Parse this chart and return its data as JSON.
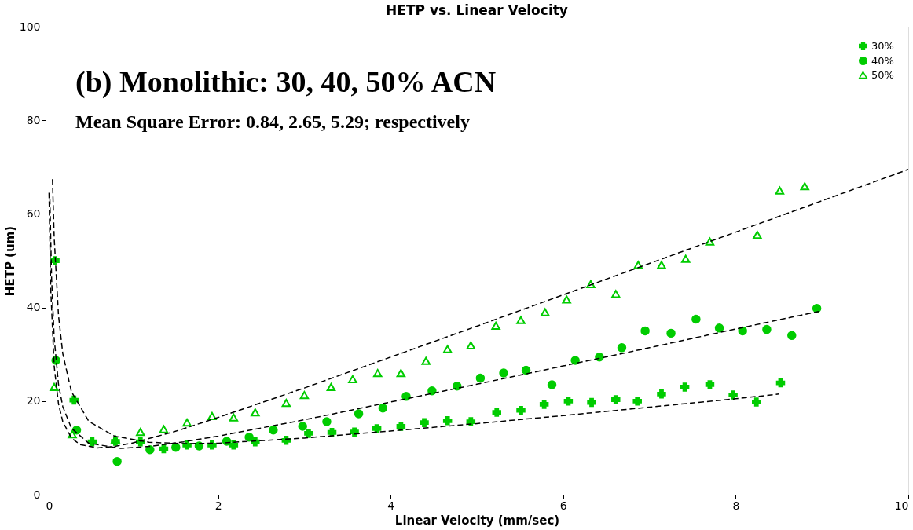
{
  "chart_data": {
    "type": "scatter",
    "title": "HETP vs. Linear Velocity",
    "xlabel": "Linear Velocity (mm/sec)",
    "ylabel": "HETP (um)",
    "annotations": [
      "(b) Monolithic: 30, 40, 50% ACN",
      "Mean Square Error: 0.84, 2.65, 5.29; respectively"
    ],
    "xlim": [
      0,
      10
    ],
    "xticks": [
      0,
      2,
      4,
      6,
      8,
      10
    ],
    "ylim": [
      0,
      100
    ],
    "yticks": [
      0,
      20,
      40,
      60,
      80,
      100
    ],
    "grid": false,
    "legend": "top right",
    "series": [
      {
        "name": "30%",
        "color": "#00cc00",
        "marker": "cross",
        "x": [
          0.11,
          0.33,
          0.54,
          0.81,
          1.1,
          1.37,
          1.64,
          1.93,
          2.18,
          2.43,
          2.79,
          3.05,
          3.32,
          3.58,
          3.84,
          4.12,
          4.39,
          4.66,
          4.93,
          5.23,
          5.51,
          5.78,
          6.06,
          6.33,
          6.61,
          6.86,
          7.14,
          7.41,
          7.7,
          7.97,
          8.24,
          8.52
        ],
        "values": [
          50,
          20.2,
          11.3,
          11.4,
          11.3,
          9.8,
          10.6,
          10.6,
          10.6,
          11.3,
          11.6,
          13.1,
          13.3,
          13.4,
          14.1,
          14.6,
          15.4,
          15.8,
          15.6,
          17.6,
          18,
          19.3,
          20,
          19.7,
          20.3,
          20,
          21.5,
          23,
          23.5,
          21.3,
          19.8,
          23.9
        ]
      },
      {
        "name": "40%",
        "color": "#00cc00",
        "marker": "circle",
        "x": [
          0.12,
          0.36,
          0.55,
          0.83,
          1.21,
          1.51,
          1.78,
          2.1,
          2.36,
          2.64,
          2.98,
          3.26,
          3.63,
          3.91,
          4.18,
          4.48,
          4.77,
          5.04,
          5.31,
          5.57,
          5.87,
          6.14,
          6.42,
          6.68,
          6.95,
          7.25,
          7.54,
          7.81,
          8.08,
          8.36,
          8.65,
          8.94
        ],
        "values": [
          28.7,
          13.8,
          null,
          7.1,
          9.6,
          10.1,
          10.4,
          11.4,
          12.3,
          13.8,
          14.6,
          15.6,
          17.3,
          18.5,
          21,
          22.2,
          23.2,
          24.9,
          26,
          26.6,
          23.5,
          28.7,
          29.4,
          31.4,
          35,
          34.5,
          37.5,
          35.6,
          35,
          35.3,
          34,
          39.8
        ]
      },
      {
        "name": "50%",
        "color": "#00cc00",
        "marker": "triangle",
        "x": [
          0.1,
          0.31,
          0.81,
          1.1,
          1.37,
          1.64,
          1.93,
          2.18,
          2.43,
          2.79,
          3.0,
          3.31,
          3.56,
          3.85,
          4.12,
          4.41,
          4.66,
          4.93,
          5.22,
          5.51,
          5.79,
          6.04,
          6.32,
          6.61,
          6.87,
          7.14,
          7.42,
          7.7,
          8.25,
          8.51,
          8.8
        ],
        "values": [
          23,
          12.9,
          11.8,
          13.4,
          14,
          15.4,
          16.8,
          16.5,
          17.6,
          19.6,
          21.3,
          23,
          24.7,
          26,
          26,
          28.6,
          31.1,
          31.9,
          36.1,
          37.3,
          39,
          41.7,
          45,
          42.9,
          49.1,
          49.1,
          50.4,
          54.1,
          55.5,
          65,
          65.9
        ]
      },
      {
        "type": "line",
        "color": "#000000",
        "line_style": "dashed",
        "x": [
          0.08,
          0.1,
          0.15,
          0.2,
          0.3,
          0.5,
          0.8,
          1.2,
          1.6,
          2,
          3,
          4,
          5,
          6,
          7,
          8,
          8.5
        ],
        "values": [
          67.4,
          54.9,
          38.3,
          30.1,
          22.0,
          15.7,
          12.5,
          11.2,
          10.9,
          11.0,
          12.1,
          13.6,
          15.2,
          16.9,
          18.7,
          20.5,
          21.5
        ]
      },
      {
        "type": "line",
        "color": "#000000",
        "line_style": "dashed",
        "x": [
          0.05,
          0.07,
          0.1,
          0.15,
          0.2,
          0.3,
          0.5,
          0.87,
          1.2,
          1.6,
          2,
          3,
          4,
          5,
          6,
          7,
          8,
          9
        ],
        "values": [
          63.2,
          46.2,
          33.4,
          23.6,
          18.8,
          14.2,
          11,
          9.9,
          10.3,
          11.3,
          12.5,
          16,
          19.8,
          23.6,
          27.5,
          31.4,
          35.4,
          39.3
        ]
      },
      {
        "type": "line",
        "color": "#000000",
        "line_style": "dashed",
        "x": [
          0.04,
          0.06,
          0.1,
          0.15,
          0.2,
          0.3,
          0.4,
          0.6,
          0.8,
          1,
          1.5,
          2,
          3,
          4,
          5,
          6,
          7,
          8,
          9,
          10
        ],
        "values": [
          64.5,
          43.9,
          27.4,
          19.4,
          15.6,
          12.1,
          10.7,
          10.0,
          10.3,
          11,
          13.5,
          16.5,
          22.8,
          29.4,
          36.0,
          42.7,
          49.4,
          56.1,
          62.8,
          69.5
        ]
      }
    ]
  }
}
